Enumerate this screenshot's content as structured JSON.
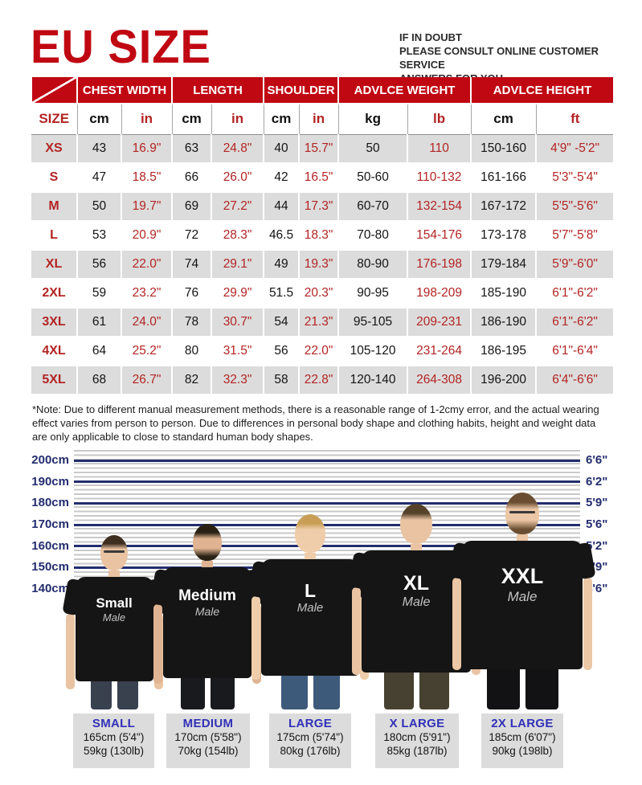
{
  "header": {
    "title": "EU SIZE",
    "note_lines": [
      "IF IN DOUBT",
      "PLEASE CONSULT ONLINE CUSTOMER SERVICE",
      "ANSWERS FOR YOU"
    ]
  },
  "colors": {
    "brand_red": "#c00813",
    "value_red": "#b32424",
    "navy": "#232d6e",
    "footer_blue": "#3030b8",
    "row_alt_gray": "#dcdcdc",
    "stripe_gray": "#c9c9c9"
  },
  "size_table": {
    "group_headers": [
      "CHEST WIDTH",
      "LENGTH",
      "SHOULDER",
      "ADVLCE WEIGHT",
      "ADVLCE HEIGHT"
    ],
    "sub_headers": [
      "SIZE",
      "cm",
      "in",
      "cm",
      "in",
      "cm",
      "in",
      "kg",
      "lb",
      "cm",
      "ft"
    ],
    "rows": [
      [
        "XS",
        "43",
        "16.9\"",
        "63",
        "24.8\"",
        "40",
        "15.7\"",
        "50",
        "110",
        "150-160",
        "4'9\" -5'2\""
      ],
      [
        "S",
        "47",
        "18.5\"",
        "66",
        "26.0\"",
        "42",
        "16.5\"",
        "50-60",
        "110-132",
        "161-166",
        "5'3\"-5'4\""
      ],
      [
        "M",
        "50",
        "19.7\"",
        "69",
        "27.2\"",
        "44",
        "17.3\"",
        "60-70",
        "132-154",
        "167-172",
        "5'5\"-5'6\""
      ],
      [
        "L",
        "53",
        "20.9\"",
        "72",
        "28.3\"",
        "46.5",
        "18.3\"",
        "70-80",
        "154-176",
        "173-178",
        "5'7\"-5'8\""
      ],
      [
        "XL",
        "56",
        "22.0\"",
        "74",
        "29.1\"",
        "49",
        "19.3\"",
        "80-90",
        "176-198",
        "179-184",
        "5'9\"-6'0\""
      ],
      [
        "2XL",
        "59",
        "23.2\"",
        "76",
        "29.9\"",
        "51.5",
        "20.3\"",
        "90-95",
        "198-209",
        "185-190",
        "6'1\"-6'2\""
      ],
      [
        "3XL",
        "61",
        "24.0\"",
        "78",
        "30.7\"",
        "54",
        "21.3\"",
        "95-105",
        "209-231",
        "186-190",
        "6'1\"-6'2\""
      ],
      [
        "4XL",
        "64",
        "25.2\"",
        "80",
        "31.5\"",
        "56",
        "22.0\"",
        "105-120",
        "231-264",
        "186-195",
        "6'1\"-6'4\""
      ],
      [
        "5XL",
        "68",
        "26.7\"",
        "82",
        "32.3\"",
        "58",
        "22.8\"",
        "120-140",
        "264-308",
        "196-200",
        "6'4\"-6'6\""
      ]
    ]
  },
  "note": "*Note: Due to different manual measurement methods, there is a reasonable range of 1-2cmy error, and the actual wearing effect varies from person to person. Due to differences in personal body shape and clothing habits, height and weight data are only applicable to close to standard human body shapes.",
  "height_chart": {
    "left_labels": [
      "200cm",
      "190cm",
      "180cm",
      "170cm",
      "160cm",
      "150cm",
      "140cm"
    ],
    "right_labels": [
      "6'6\"",
      "6'2\"",
      "5'9\"",
      "5'6\"",
      "5'2\"",
      "4'9\"",
      "4'6\""
    ]
  },
  "models": [
    {
      "size_label": "Small",
      "sub_label": "Male"
    },
    {
      "size_label": "Medium",
      "sub_label": "Male"
    },
    {
      "size_label": "L",
      "sub_label": "Male"
    },
    {
      "size_label": "XL",
      "sub_label": "Male"
    },
    {
      "size_label": "XXL",
      "sub_label": "Male"
    }
  ],
  "footer_labels": [
    {
      "name": "SMALL",
      "height": "165cm (5'4\")",
      "weight": "59kg (130lb)"
    },
    {
      "name": "MEDIUM",
      "height": "170cm (5'58\")",
      "weight": "70kg (154lb)"
    },
    {
      "name": "LARGE",
      "height": "175cm (5'74\")",
      "weight": "80kg (176lb)"
    },
    {
      "name": "X LARGE",
      "height": "180cm (5'91\")",
      "weight": "85kg (187lb)"
    },
    {
      "name": "2X LARGE",
      "height": "185cm (6'07\")",
      "weight": "90kg (198lb)"
    }
  ]
}
